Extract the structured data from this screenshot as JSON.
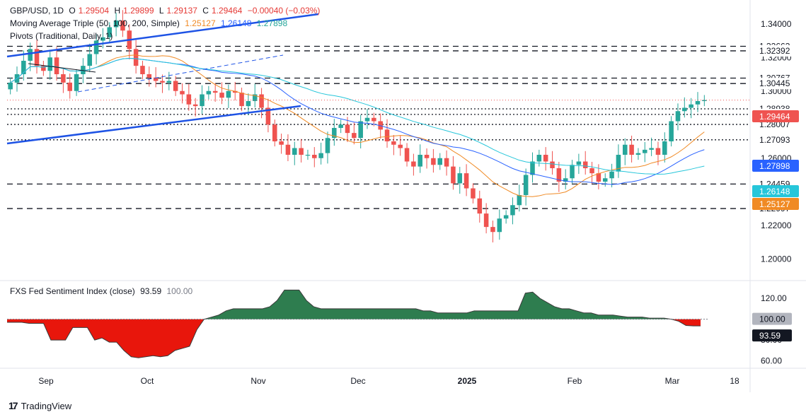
{
  "header": {
    "symbol": "GBP/USD, 1D",
    "open_label": "O",
    "open": "1.29504",
    "high_label": "H",
    "high": "1.29899",
    "low_label": "L",
    "low": "1.29137",
    "close_label": "C",
    "close": "1.29464",
    "change": "−0.00040 (−0.03%)",
    "ma_title": "Moving Average Triple (50, 100, 200, Simple)",
    "ma50": "1.25127",
    "ma100": "1.26148",
    "ma200": "1.27898",
    "pivots_title": "Pivots (Traditional, Daily, 1)"
  },
  "sub_header": {
    "title": "FXS Fed Sentiment Index (close)",
    "value": "93.59",
    "value2": "100.00"
  },
  "footer": {
    "brand": "TradingView"
  },
  "colors": {
    "up": "#26a69a",
    "down": "#ef5350",
    "ma50": "#f08a24",
    "ma100": "#2962ff",
    "ma200": "#26c6da",
    "trend": "#1e53e5",
    "pivot": "#131722",
    "pos_fill": "#2e7d4f",
    "neg_fill": "#e8160c"
  },
  "chart_data": [
    {
      "type": "candlestick",
      "title": "GBP/USD, 1D",
      "ylim": [
        1.19,
        1.35
      ],
      "y_ticks": [
        "1.34000",
        "1.32000",
        "1.30000",
        "1.28000",
        "1.26000",
        "1.24000",
        "1.22000",
        "1.20000"
      ],
      "x_tick_labels": [
        "Sep",
        "Oct",
        "Nov",
        "Dec",
        "2025",
        "Feb",
        "Mar",
        "18"
      ],
      "pivot_levels": [
        "1.32663",
        "1.32392",
        "1.30767",
        "1.30445",
        "1.28938",
        "1.28605",
        "1.28007",
        "1.27093",
        "1.24459",
        "1.22997"
      ],
      "price_tags": [
        {
          "label": "1.29464",
          "kind": "price"
        },
        {
          "label": "1.27898",
          "kind": "ma200"
        },
        {
          "label": "1.26148",
          "kind": "ma100"
        },
        {
          "label": "1.25127",
          "kind": "ma50"
        }
      ],
      "close_series_approx": [
        1.305,
        1.31,
        1.318,
        1.325,
        1.315,
        1.312,
        1.32,
        1.31,
        1.305,
        1.3,
        1.31,
        1.315,
        1.322,
        1.33,
        1.332,
        1.338,
        1.342,
        1.336,
        1.325,
        1.315,
        1.31,
        1.308,
        1.306,
        1.305,
        1.306,
        1.3,
        1.298,
        1.292,
        1.291,
        1.298,
        1.3,
        1.299,
        1.296,
        1.3,
        1.299,
        1.291,
        1.294,
        1.298,
        1.29,
        1.28,
        1.27,
        1.268,
        1.262,
        1.266,
        1.262,
        1.262,
        1.26,
        1.263,
        1.272,
        1.278,
        1.28,
        1.275,
        1.272,
        1.282,
        1.284,
        1.282,
        1.277,
        1.27,
        1.268,
        1.266,
        1.258,
        1.255,
        1.262,
        1.26,
        1.256,
        1.26,
        1.255,
        1.245,
        1.251,
        1.242,
        1.236,
        1.227,
        1.219,
        1.216,
        1.224,
        1.226,
        1.232,
        1.238,
        1.25,
        1.258,
        1.262,
        1.258,
        1.254,
        1.246,
        1.248,
        1.256,
        1.258,
        1.254,
        1.251,
        1.246,
        1.248,
        1.252,
        1.262,
        1.268,
        1.262,
        1.263,
        1.265,
        1.266,
        1.262,
        1.27,
        1.282,
        1.288,
        1.29,
        1.292,
        1.294,
        1.2946
      ]
    },
    {
      "type": "area",
      "title": "FXS Fed Sentiment Index (close)",
      "ylim": [
        55,
        135
      ],
      "baseline": 100,
      "y_ticks": [
        "120.00",
        "80.00",
        "60.00"
      ],
      "value_tags": [
        {
          "label": "100.00"
        },
        {
          "label": "93.59"
        }
      ],
      "values_approx": [
        97,
        97,
        97,
        96,
        96,
        96,
        80,
        80,
        80,
        92,
        92,
        92,
        80,
        82,
        78,
        78,
        70,
        64,
        63,
        64,
        65,
        64,
        65,
        70,
        72,
        74,
        90,
        100,
        102,
        104,
        108,
        110,
        110,
        110,
        110,
        110,
        112,
        118,
        128,
        128,
        128,
        118,
        112,
        110,
        110,
        110,
        110,
        110,
        110,
        110,
        110,
        110,
        110,
        110,
        110,
        110,
        110,
        108,
        108,
        106,
        106,
        106,
        106,
        106,
        108,
        108,
        108,
        108,
        108,
        108,
        108,
        125,
        126,
        120,
        116,
        112,
        110,
        110,
        108,
        106,
        106,
        104,
        104,
        104,
        103,
        102,
        102,
        102,
        101,
        101,
        101,
        100,
        98,
        94,
        93.59,
        93.59
      ]
    }
  ]
}
